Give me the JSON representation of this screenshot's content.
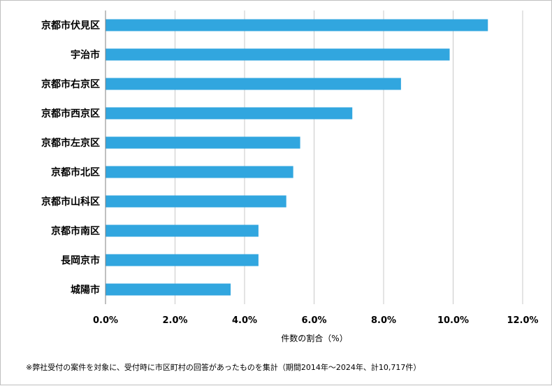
{
  "chart_data": {
    "type": "bar",
    "orientation": "horizontal",
    "categories": [
      "京都市伏見区",
      "宇治市",
      "京都市右京区",
      "京都市西京区",
      "京都市左京区",
      "京都市北区",
      "京都市山科区",
      "京都市南区",
      "長岡京市",
      "城陽市"
    ],
    "values": [
      11.0,
      9.9,
      8.5,
      7.1,
      5.6,
      5.4,
      5.2,
      4.4,
      4.4,
      3.6
    ],
    "xlim": [
      0,
      12
    ],
    "xticks": [
      "0.0%",
      "2.0%",
      "4.0%",
      "6.0%",
      "8.0%",
      "10.0%",
      "12.0%"
    ],
    "xlabel": "件数の割合（%）",
    "ylabel": "",
    "grid": true,
    "bar_color": "#31a6df",
    "grid_color": "#c8c8c8"
  },
  "footnote": "※弊社受付の案件を対象に、受付時に市区町村の回答があったものを集計（期間2014年～2024年、計10,717件）"
}
